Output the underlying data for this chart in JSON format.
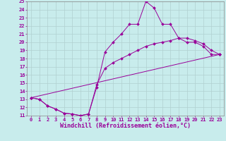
{
  "xlabel": "Windchill (Refroidissement éolien,°C)",
  "background_color": "#c8ecec",
  "grid_color": "#b0d0d0",
  "line_color": "#990099",
  "xlim": [
    -0.5,
    23.5
  ],
  "ylim": [
    11,
    25
  ],
  "xticks": [
    0,
    1,
    2,
    3,
    4,
    5,
    6,
    7,
    8,
    9,
    10,
    11,
    12,
    13,
    14,
    15,
    16,
    17,
    18,
    19,
    20,
    21,
    22,
    23
  ],
  "yticks": [
    11,
    12,
    13,
    14,
    15,
    16,
    17,
    18,
    19,
    20,
    21,
    22,
    23,
    24,
    25
  ],
  "line1_x": [
    0,
    1,
    2,
    3,
    4,
    5,
    6,
    7,
    8,
    9,
    10,
    11,
    12,
    13,
    14,
    15,
    16,
    17,
    18,
    19,
    20,
    21,
    22,
    23
  ],
  "line1_y": [
    13.2,
    13.0,
    12.2,
    11.8,
    11.3,
    11.2,
    11.0,
    11.2,
    14.5,
    18.8,
    20.0,
    21.0,
    22.2,
    22.2,
    25.0,
    24.2,
    22.2,
    22.2,
    20.5,
    20.0,
    20.0,
    19.5,
    18.5,
    18.5
  ],
  "line2_x": [
    0,
    1,
    2,
    3,
    4,
    5,
    6,
    7,
    8,
    9,
    10,
    11,
    12,
    13,
    14,
    15,
    16,
    17,
    18,
    19,
    20,
    21,
    22,
    23
  ],
  "line2_y": [
    13.2,
    13.0,
    12.2,
    11.8,
    11.3,
    11.2,
    11.0,
    11.2,
    14.8,
    16.8,
    17.5,
    18.0,
    18.5,
    19.0,
    19.5,
    19.8,
    20.0,
    20.2,
    20.5,
    20.5,
    20.2,
    19.8,
    19.0,
    18.5
  ],
  "line3_x": [
    0,
    23
  ],
  "line3_y": [
    13.2,
    18.5
  ],
  "marker": "D",
  "marker_size": 2.0,
  "line_width": 0.7,
  "font_size": 6.0,
  "tick_font_size": 5.0,
  "xlabel_font_size": 6.0
}
